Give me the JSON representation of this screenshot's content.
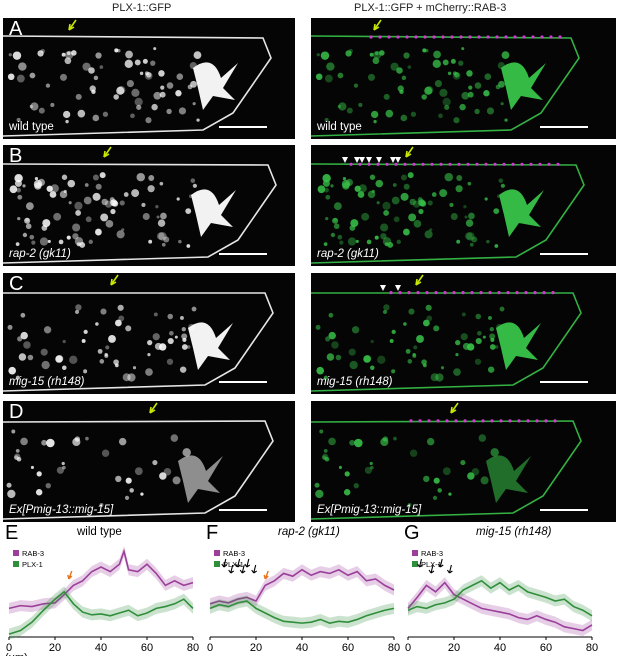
{
  "header": {
    "left_title": "PLX-1::GFP",
    "right_title": "PLX-1::GFP + mCherry::RAB-3"
  },
  "rows": [
    {
      "letter": "A",
      "genotype": "wild type"
    },
    {
      "letter": "B",
      "genotype": "rap-2 (gk11)"
    },
    {
      "letter": "C",
      "genotype": "mig-15 (rh148)"
    },
    {
      "letter": "D",
      "genotype": "Ex[Pmig-13::mig-15]"
    }
  ],
  "colors": {
    "rab3": "#9b3f9b",
    "plx1": "#2f8f3a",
    "green_channel": "#39c44a",
    "magenta_channel": "#d23ad2",
    "arrow_yellow": "#c8e600",
    "arrow_orange": "#e8731a"
  },
  "chart_data": [
    {
      "letter": "E",
      "title": "wild type",
      "type": "line",
      "xlabel": "(μm)",
      "xticks": [
        "0",
        "20",
        "40",
        "60",
        "80"
      ],
      "xlim": [
        0,
        80
      ],
      "legend": [
        "RAB-3",
        "PLX-1"
      ],
      "series": [
        {
          "name": "RAB-3",
          "x": [
            0,
            5,
            10,
            15,
            20,
            24,
            28,
            32,
            36,
            40,
            44,
            48,
            50,
            52,
            56,
            60,
            64,
            68,
            72,
            76,
            80
          ],
          "y": [
            0.3,
            0.33,
            0.32,
            0.35,
            0.36,
            0.45,
            0.55,
            0.6,
            0.7,
            0.75,
            0.7,
            0.78,
            0.92,
            0.72,
            0.7,
            0.78,
            0.68,
            0.55,
            0.6,
            0.55,
            0.58
          ]
        },
        {
          "name": "PLX-1",
          "x": [
            0,
            5,
            10,
            15,
            20,
            24,
            28,
            32,
            36,
            40,
            44,
            48,
            52,
            56,
            60,
            64,
            68,
            72,
            76,
            80
          ],
          "y": [
            0.02,
            0.06,
            0.15,
            0.28,
            0.4,
            0.48,
            0.35,
            0.26,
            0.23,
            0.24,
            0.22,
            0.25,
            0.28,
            0.22,
            0.25,
            0.3,
            0.32,
            0.35,
            0.4,
            0.3
          ]
        }
      ]
    },
    {
      "letter": "F",
      "title": "rap-2 (gk11)",
      "type": "line",
      "xlabel": "",
      "xticks": [
        "0",
        "20",
        "40",
        "60",
        "80"
      ],
      "xlim": [
        0,
        80
      ],
      "legend": [
        "RAB-3",
        "PLX-1"
      ],
      "series": [
        {
          "name": "RAB-3",
          "x": [
            0,
            4,
            8,
            12,
            16,
            20,
            24,
            28,
            32,
            36,
            40,
            44,
            48,
            52,
            56,
            60,
            64,
            68,
            72,
            76,
            80
          ],
          "y": [
            0.35,
            0.38,
            0.36,
            0.4,
            0.42,
            0.38,
            0.55,
            0.6,
            0.68,
            0.65,
            0.72,
            0.66,
            0.7,
            0.68,
            0.72,
            0.66,
            0.7,
            0.6,
            0.62,
            0.55,
            0.5
          ]
        },
        {
          "name": "PLX-1",
          "x": [
            0,
            4,
            8,
            12,
            16,
            20,
            24,
            28,
            32,
            36,
            40,
            44,
            48,
            52,
            56,
            60,
            64,
            68,
            72,
            76,
            80
          ],
          "y": [
            0.3,
            0.34,
            0.32,
            0.36,
            0.38,
            0.3,
            0.25,
            0.2,
            0.16,
            0.15,
            0.14,
            0.15,
            0.18,
            0.14,
            0.16,
            0.15,
            0.18,
            0.22,
            0.25,
            0.28,
            0.3
          ]
        }
      ]
    },
    {
      "letter": "G",
      "title": "mig-15 (rh148)",
      "type": "line",
      "xlabel": "",
      "xticks": [
        "0",
        "20",
        "40",
        "60",
        "80"
      ],
      "xlim": [
        0,
        80
      ],
      "legend": [
        "RAB-3",
        "PLX-1"
      ],
      "series": [
        {
          "name": "RAB-3",
          "x": [
            0,
            4,
            8,
            12,
            16,
            20,
            24,
            28,
            32,
            36,
            40,
            44,
            48,
            52,
            56,
            60,
            64,
            68,
            72,
            76,
            80
          ],
          "y": [
            0.3,
            0.42,
            0.55,
            0.48,
            0.58,
            0.45,
            0.4,
            0.35,
            0.3,
            0.28,
            0.26,
            0.24,
            0.2,
            0.18,
            0.22,
            0.18,
            0.15,
            0.1,
            0.08,
            0.06,
            0.12
          ]
        },
        {
          "name": "PLX-1",
          "x": [
            0,
            4,
            8,
            12,
            16,
            20,
            24,
            28,
            32,
            36,
            40,
            44,
            48,
            52,
            56,
            60,
            64,
            68,
            72,
            76,
            80
          ],
          "y": [
            0.28,
            0.32,
            0.3,
            0.34,
            0.36,
            0.4,
            0.5,
            0.55,
            0.6,
            0.52,
            0.58,
            0.5,
            0.55,
            0.48,
            0.45,
            0.42,
            0.38,
            0.4,
            0.32,
            0.28,
            0.22
          ]
        }
      ]
    }
  ]
}
